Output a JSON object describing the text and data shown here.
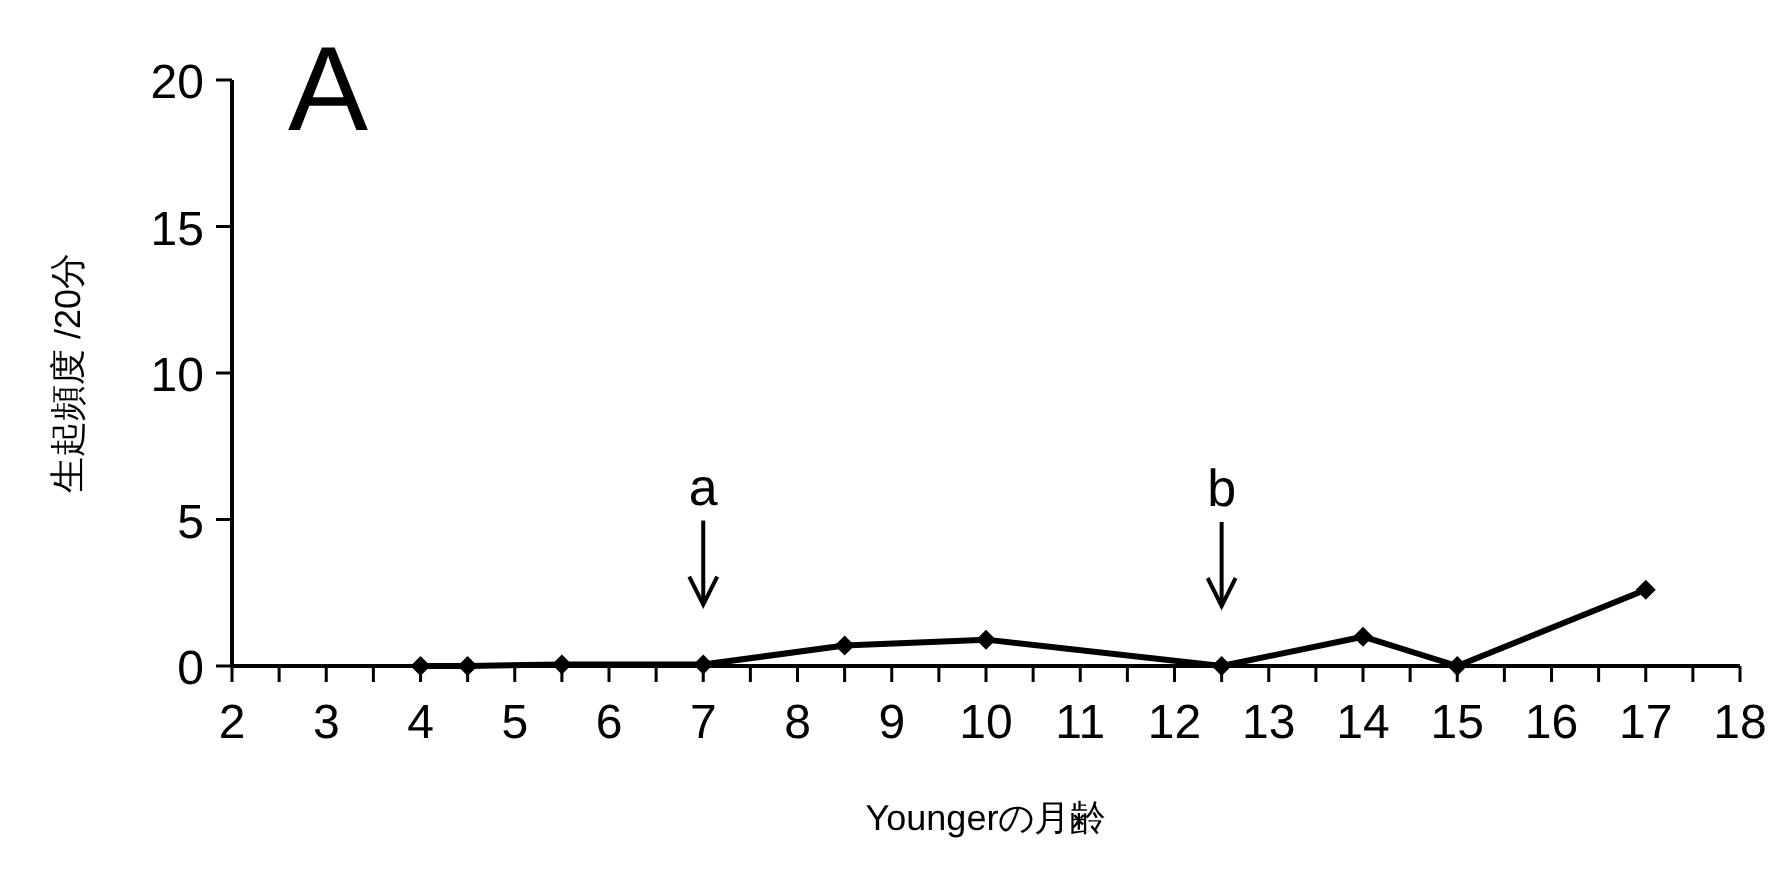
{
  "chart_data": {
    "type": "line",
    "title": "A",
    "xlabel": "Youngerの月齢",
    "ylabel": "生起頻度 /20分",
    "x": [
      4,
      4.5,
      5.5,
      7,
      8.5,
      10,
      12.5,
      14,
      15,
      17
    ],
    "series": [
      {
        "color": "#000000",
        "values": [
          0,
          0,
          0.05,
          0.05,
          0.7,
          0.9,
          0,
          1.0,
          0,
          2.6
        ]
      }
    ],
    "marker": "diamond",
    "line_style": "solid",
    "grid": false,
    "xlim": [
      2,
      18
    ],
    "xticks": [
      2,
      {
        "value": 2.5,
        "label": null
      },
      3,
      {
        "value": 3.5,
        "label": null
      },
      4,
      {
        "value": 4.5,
        "label": null
      },
      5,
      {
        "value": 5.5,
        "label": null
      },
      6,
      {
        "value": 6.5,
        "label": null
      },
      7,
      {
        "value": 7.5,
        "label": null
      },
      8,
      {
        "value": 8.5,
        "label": null
      },
      9,
      {
        "value": 9.5,
        "label": null
      },
      10,
      {
        "value": 10.5,
        "label": null
      },
      11,
      {
        "value": 11.5,
        "label": null
      },
      12,
      {
        "value": 12.5,
        "label": null
      },
      13,
      {
        "value": 13.5,
        "label": null
      },
      14,
      {
        "value": 14.5,
        "label": null
      },
      15,
      {
        "value": 15.5,
        "label": null
      },
      16,
      {
        "value": 16.5,
        "label": null
      },
      17,
      {
        "value": 17.5,
        "label": null
      },
      18
    ],
    "ylim": [
      0,
      20
    ],
    "yticks": [
      0,
      5,
      10,
      15,
      20
    ],
    "annotations": [
      {
        "text": "a",
        "x": 7,
        "y": 0.05
      },
      {
        "text": "b",
        "x": 12.5,
        "y": 0
      }
    ]
  }
}
